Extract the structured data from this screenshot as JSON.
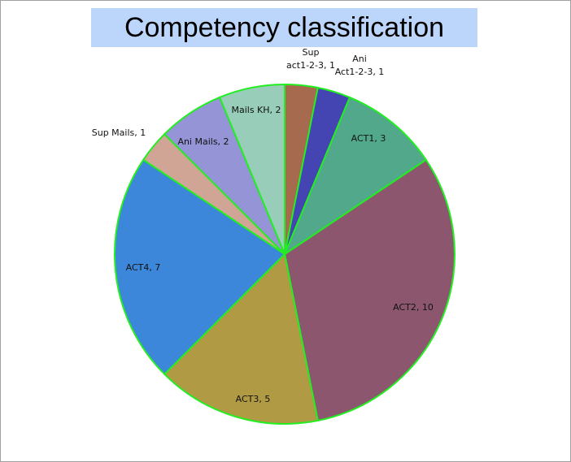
{
  "chart_data": {
    "type": "pie",
    "title": "Competency classification",
    "slices": [
      {
        "label": "Sup act1-2-3, 1",
        "value": 1,
        "color": "#a66b4f"
      },
      {
        "label": "Ani Act1-2-3, 1",
        "value": 1,
        "color": "#4444b3"
      },
      {
        "label": "ACT1, 3",
        "value": 3,
        "color": "#52a88b"
      },
      {
        "label": "ACT2, 10",
        "value": 10,
        "color": "#8c576e"
      },
      {
        "label": "ACT3, 5",
        "value": 5,
        "color": "#b09a44"
      },
      {
        "label": "ACT4, 7",
        "value": 7,
        "color": "#3d87db"
      },
      {
        "label": "Sup Mails, 1",
        "value": 1,
        "color": "#d1a595"
      },
      {
        "label": "Ani Mails, 2",
        "value": 2,
        "color": "#9494d6"
      },
      {
        "label": "Mails KH, 2",
        "value": 2,
        "color": "#98cdb9"
      }
    ],
    "slice_border_color": "#22ee22",
    "start_angle": "12 o'clock",
    "direction": "clockwise",
    "legend": "none"
  }
}
